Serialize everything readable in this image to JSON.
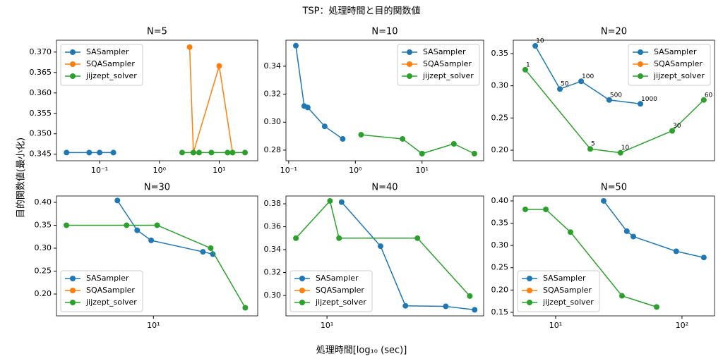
{
  "suptitle": "TSP：処理時間と目的関数値",
  "xlabel": "処理時間[log₁₀ (sec)]",
  "ylabel": "目的関数値(最小化)",
  "chart_data": [
    {
      "type": "line",
      "title": "N=5",
      "xscale": "log",
      "xlim": [
        0.019,
        44
      ],
      "ylim": [
        0.3434,
        0.3729
      ],
      "xticks": [
        {
          "value": 0.1,
          "label": "10⁻¹"
        },
        {
          "value": 1,
          "label": "10⁰"
        },
        {
          "value": 10,
          "label": "10¹"
        }
      ],
      "yticks": [
        0.345,
        {
          "value": 0.35,
          "label": "0.350"
        },
        0.355,
        {
          "value": 0.36,
          "label": "0.360"
        },
        0.365,
        {
          "value": 0.37,
          "label": "0.370"
        }
      ],
      "legend": "upper left",
      "series": [
        {
          "name": "SASampler",
          "color": "#1f77b4",
          "x": [
            0.028,
            0.067,
            0.1,
            0.17
          ],
          "values": [
            0.3454,
            0.3454,
            0.3454,
            0.3454
          ]
        },
        {
          "name": "SQASampler",
          "color": "#ff7f0e",
          "x": [
            3.2,
            3.7,
            10,
            16.7
          ],
          "values": [
            0.3712,
            0.3454,
            0.3666,
            0.3454
          ]
        },
        {
          "name": "jijzept_solver",
          "color": "#2ca02c",
          "x": [
            2.4,
            3.7,
            4.6,
            7.4,
            13.8,
            16.7,
            27
          ],
          "values": [
            0.3454,
            0.3454,
            0.3454,
            0.3454,
            0.3454,
            0.3454,
            0.3454
          ]
        }
      ]
    },
    {
      "type": "line",
      "title": "N=10",
      "xscale": "log",
      "xlim": [
        0.091,
        84
      ],
      "ylim": [
        0.2724,
        0.3586
      ],
      "xticks": [
        {
          "value": 0.1,
          "label": "10⁻¹"
        },
        {
          "value": 1,
          "label": "10⁰"
        },
        {
          "value": 10,
          "label": "10¹"
        }
      ],
      "yticks": [
        0.28,
        {
          "value": 0.3,
          "label": "0.30"
        },
        0.32,
        0.34
      ],
      "legend": "upper right",
      "series": [
        {
          "name": "SASampler",
          "color": "#1f77b4",
          "x": [
            0.128,
            0.171,
            0.193,
            0.347,
            0.646
          ],
          "values": [
            0.3547,
            0.3115,
            0.3105,
            0.297,
            0.288
          ]
        },
        {
          "name": "SQASampler",
          "color": "#ff7f0e",
          "x": [],
          "values": []
        },
        {
          "name": "jijzept_solver",
          "color": "#2ca02c",
          "x": [
            1.22,
            5.1,
            10,
            30,
            61
          ],
          "values": [
            0.291,
            0.288,
            0.2775,
            0.2845,
            0.2775
          ]
        }
      ]
    },
    {
      "type": "line",
      "title": "N=20",
      "xscale": "log",
      "xlim": [
        0.8,
        90
      ],
      "ylim": [
        0.1836,
        0.3708
      ],
      "yticks": [
        {
          "value": 0.2,
          "label": "0.20"
        },
        0.25,
        {
          "value": 0.3,
          "label": "0.30"
        },
        0.35
      ],
      "legend": "upper right",
      "series": [
        {
          "name": "SASampler",
          "color": "#1f77b4",
          "x": [
            1.34,
            2.39,
            3.93,
            7.6,
            15.8
          ],
          "values": [
            0.362,
            0.295,
            0.307,
            0.278,
            0.272
          ],
          "point_labels": [
            "10",
            "50",
            "100",
            "500",
            "1000"
          ]
        },
        {
          "name": "SQASampler",
          "color": "#ff7f0e",
          "x": [],
          "values": []
        },
        {
          "name": "jijzept_solver",
          "color": "#2ca02c",
          "x": [
            1.06,
            4.87,
            9.9,
            33.3,
            70
          ],
          "values": [
            0.325,
            0.202,
            0.196,
            0.23,
            0.278
          ],
          "point_labels": [
            "1",
            "5",
            "10",
            "30",
            "60"
          ]
        }
      ]
    },
    {
      "type": "line",
      "title": "N=30",
      "xscale": "log",
      "xlim": [
        1.73,
        66
      ],
      "ylim": [
        0.1523,
        0.4138
      ],
      "xticks": [
        {
          "value": 10,
          "label": "10¹"
        }
      ],
      "yticks": [
        {
          "value": 0.2,
          "label": "0.20"
        },
        0.25,
        {
          "value": 0.3,
          "label": "0.30"
        },
        0.35,
        {
          "value": 0.4,
          "label": "0.40"
        }
      ],
      "legend": "lower left",
      "series": [
        {
          "name": "SASampler",
          "color": "#1f77b4",
          "x": [
            5.21,
            7.45,
            9.6,
            24.5,
            29.3
          ],
          "values": [
            0.404,
            0.339,
            0.317,
            0.292,
            0.287
          ]
        },
        {
          "name": "SQASampler",
          "color": "#ff7f0e",
          "x": [],
          "values": []
        },
        {
          "name": "jijzept_solver",
          "color": "#2ca02c",
          "x": [
            2.07,
            6.15,
            10.7,
            28.2,
            52.7
          ],
          "values": [
            0.35,
            0.35,
            0.35,
            0.3,
            0.17
          ]
        }
      ]
    },
    {
      "type": "line",
      "title": "N=40",
      "xscale": "log",
      "xlim": [
        5.86,
        77
      ],
      "ylim": [
        0.2822,
        0.3868
      ],
      "xticks": [
        {
          "value": 10,
          "label": "10¹"
        }
      ],
      "yticks": [
        {
          "value": 0.3,
          "label": "0.30"
        },
        0.32,
        0.34,
        0.36,
        0.38
      ],
      "legend": "lower left",
      "series": [
        {
          "name": "SASampler",
          "color": "#1f77b4",
          "x": [
            12.1,
            20.1,
            27.8,
            47,
            68.5
          ],
          "values": [
            0.3815,
            0.343,
            0.291,
            0.2905,
            0.2875
          ]
        },
        {
          "name": "SQASampler",
          "color": "#ff7f0e",
          "x": [],
          "values": []
        },
        {
          "name": "jijzept_solver",
          "color": "#2ca02c",
          "x": [
            6.67,
            10.4,
            11.7,
            32.5,
            64.3
          ],
          "values": [
            0.35,
            0.3825,
            0.35,
            0.35,
            0.2995
          ]
        }
      ]
    },
    {
      "type": "line",
      "title": "N=50",
      "xscale": "log",
      "xlim": [
        4.62,
        181
      ],
      "ylim": [
        0.142,
        0.411
      ],
      "xticks": [
        {
          "value": 10,
          "label": "10¹"
        },
        {
          "value": 100,
          "label": "10²"
        }
      ],
      "yticks": [
        0.15,
        {
          "value": 0.2,
          "label": "0.20"
        },
        0.25,
        {
          "value": 0.3,
          "label": "0.30"
        },
        0.35,
        {
          "value": 0.4,
          "label": "0.40"
        }
      ],
      "legend": "lower left",
      "series": [
        {
          "name": "SASampler",
          "color": "#1f77b4",
          "x": [
            24,
            36.6,
            41.2,
            90,
            149
          ],
          "values": [
            0.4,
            0.332,
            0.32,
            0.287,
            0.273
          ]
        },
        {
          "name": "SQASampler",
          "color": "#ff7f0e",
          "x": [],
          "values": []
        },
        {
          "name": "jijzept_solver",
          "color": "#2ca02c",
          "x": [
            5.75,
            8.36,
            13.1,
            33.5,
            63
          ],
          "values": [
            0.381,
            0.381,
            0.33,
            0.187,
            0.162
          ]
        }
      ]
    }
  ]
}
